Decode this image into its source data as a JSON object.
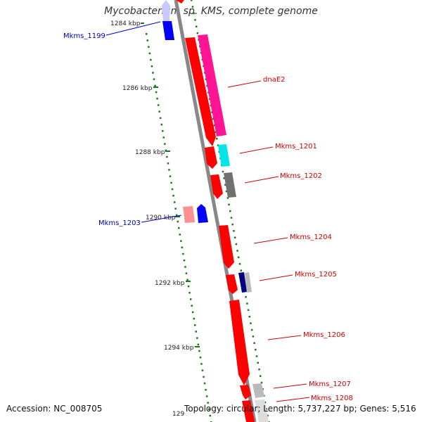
{
  "title": "Mycobacterium sp. KMS, complete genome",
  "footer": {
    "accession": "Accession: NC_008705",
    "summary": "Topology: circular; Length: 5,737,227 bp; Genes: 5,516"
  },
  "axis": {
    "tick_labels": [
      "1284 kbp",
      "1286 kbp",
      "1288 kbp",
      "1290 kbp",
      "1292 kbp",
      "1294 kbp",
      "129"
    ]
  },
  "genes": {
    "forward": [
      "dnaE2",
      "Mkms_1201",
      "Mkms_1202",
      "Mkms_1204",
      "Mkms_1205",
      "Mkms_1206",
      "Mkms_1207",
      "Mkms_1208"
    ],
    "reverse": [
      "Mkms_1199",
      "Mkms_1203"
    ]
  },
  "colors": {
    "forward_strand": "#ff0000",
    "reverse_strand": "#0000ff",
    "backbone": "#888888",
    "tick": "#1a7a1a",
    "forward_label": "#cc0000",
    "reverse_label": "#0000aa"
  }
}
